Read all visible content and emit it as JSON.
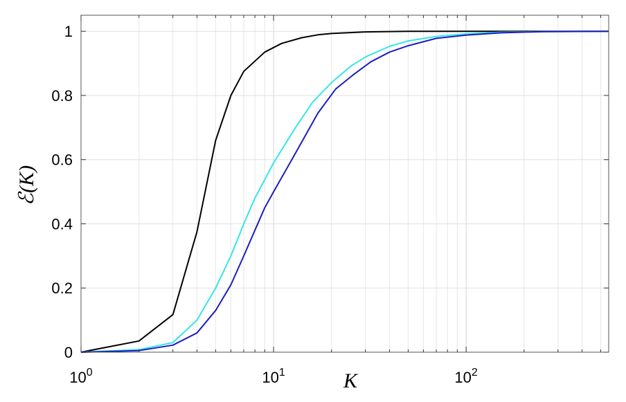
{
  "chart_data": {
    "type": "line",
    "xlabel": "K",
    "ylabel": "ℰ(K)",
    "xscale": "log",
    "xlim": [
      1,
      550
    ],
    "ylim": [
      0,
      1.05
    ],
    "grid": true,
    "x_ticks": [
      {
        "value": 1,
        "base": "10",
        "exp": "0"
      },
      {
        "value": 10,
        "base": "10",
        "exp": "1"
      },
      {
        "value": 100,
        "base": "10",
        "exp": "2"
      }
    ],
    "y_ticks": [
      {
        "value": 0,
        "label": "0"
      },
      {
        "value": 0.2,
        "label": "0.2"
      },
      {
        "value": 0.4,
        "label": "0.4"
      },
      {
        "value": 0.6,
        "label": "0.6"
      },
      {
        "value": 0.8,
        "label": "0.8"
      },
      {
        "value": 1,
        "label": "1"
      }
    ],
    "series": [
      {
        "color": "#000000",
        "points": [
          [
            1,
            0
          ],
          [
            2,
            0.035
          ],
          [
            3,
            0.117
          ],
          [
            4,
            0.375
          ],
          [
            5,
            0.66
          ],
          [
            6,
            0.8
          ],
          [
            7,
            0.875
          ],
          [
            9,
            0.935
          ],
          [
            11,
            0.962
          ],
          [
            14,
            0.98
          ],
          [
            17,
            0.989
          ],
          [
            20,
            0.993
          ],
          [
            30,
            0.998
          ],
          [
            50,
            1
          ],
          [
            100,
            1
          ],
          [
            200,
            1
          ],
          [
            550,
            1
          ]
        ]
      },
      {
        "color": "#33e6e6",
        "points": [
          [
            1,
            0
          ],
          [
            2,
            0.008
          ],
          [
            3,
            0.03
          ],
          [
            4,
            0.1
          ],
          [
            5,
            0.2
          ],
          [
            6,
            0.3
          ],
          [
            7,
            0.4
          ],
          [
            8,
            0.48
          ],
          [
            10,
            0.59
          ],
          [
            13,
            0.7
          ],
          [
            16,
            0.78
          ],
          [
            20,
            0.84
          ],
          [
            25,
            0.89
          ],
          [
            30,
            0.92
          ],
          [
            40,
            0.953
          ],
          [
            50,
            0.97
          ],
          [
            70,
            0.984
          ],
          [
            100,
            0.992
          ],
          [
            150,
            0.997
          ],
          [
            250,
            0.999
          ],
          [
            550,
            1
          ]
        ]
      },
      {
        "color": "#1c1cc0",
        "points": [
          [
            1,
            0
          ],
          [
            2,
            0.005
          ],
          [
            3,
            0.022
          ],
          [
            4,
            0.06
          ],
          [
            5,
            0.13
          ],
          [
            6,
            0.21
          ],
          [
            7,
            0.3
          ],
          [
            8,
            0.38
          ],
          [
            9,
            0.45
          ],
          [
            10,
            0.5
          ],
          [
            13,
            0.62
          ],
          [
            17,
            0.745
          ],
          [
            21,
            0.82
          ],
          [
            26,
            0.865
          ],
          [
            32,
            0.905
          ],
          [
            40,
            0.935
          ],
          [
            50,
            0.955
          ],
          [
            70,
            0.978
          ],
          [
            100,
            0.988
          ],
          [
            150,
            0.995
          ],
          [
            250,
            0.999
          ],
          [
            550,
            1
          ]
        ]
      }
    ]
  }
}
